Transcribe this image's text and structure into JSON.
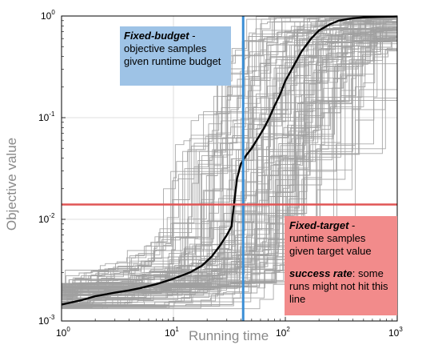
{
  "chart_data": {
    "type": "line",
    "xlabel": "Running time",
    "ylabel": "Objective value",
    "xscale": "log",
    "yscale": "log",
    "xlim": [
      1,
      1000
    ],
    "ylim": [
      0.001,
      1
    ],
    "x_ticks": [
      {
        "base": "10",
        "exp": "0"
      },
      {
        "base": "10",
        "exp": "1"
      },
      {
        "base": "10",
        "exp": "2"
      },
      {
        "base": "10",
        "exp": "3"
      }
    ],
    "y_ticks": [
      {
        "base": "10",
        "exp": "-3"
      },
      {
        "base": "10",
        "exp": "-2"
      },
      {
        "base": "10",
        "exp": "-1"
      },
      {
        "base": "10",
        "exp": "0"
      }
    ],
    "grid": true,
    "fixed_budget_x": 42,
    "fixed_target_y": 0.014,
    "median_run": {
      "x": [
        1,
        1.5,
        2,
        3,
        4,
        5,
        7,
        10,
        14,
        18,
        22,
        26,
        30,
        33,
        35,
        37,
        40,
        45,
        50,
        58,
        65,
        72,
        80,
        90,
        100,
        120,
        140,
        170,
        200,
        250,
        300,
        400,
        500,
        700,
        1000
      ],
      "y": [
        0.00145,
        0.0016,
        0.00175,
        0.0019,
        0.002,
        0.0021,
        0.0023,
        0.0026,
        0.003,
        0.0035,
        0.0043,
        0.0055,
        0.007,
        0.0085,
        0.015,
        0.025,
        0.035,
        0.043,
        0.05,
        0.065,
        0.08,
        0.1,
        0.13,
        0.17,
        0.23,
        0.33,
        0.45,
        0.6,
        0.72,
        0.83,
        0.9,
        0.95,
        0.97,
        0.98,
        0.99
      ]
    },
    "individual_runs": "many gray sample runs (approx. 100)"
  },
  "annotations": {
    "fixed_budget": {
      "title": "Fixed-budget",
      "text": " - objective samples given runtime budget"
    },
    "fixed_target": {
      "title": "Fixed-target",
      "text": " - runtime samples given target value"
    },
    "success_rate": {
      "title": "success rate",
      "text": ": some runs might not hit this line"
    }
  },
  "colors": {
    "median": "#000000",
    "runs": "#a0a0a0",
    "budget_line": "#3b8fd6",
    "target_line": "#e05555",
    "budget_box": "#9ec3e6",
    "target_box": "#f28b8b"
  }
}
